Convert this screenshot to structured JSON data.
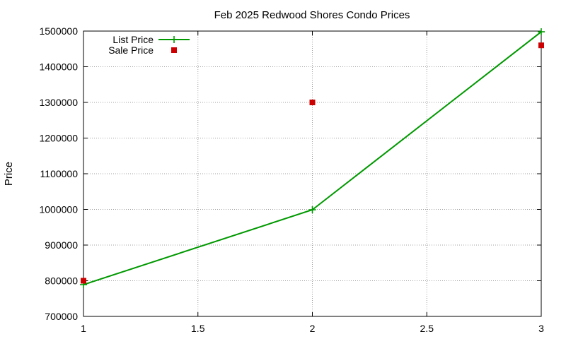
{
  "chart_data": {
    "type": "line",
    "title": "Feb 2025 Redwood Shores Condo Prices",
    "xlabel": "",
    "ylabel": "Price",
    "xlim": [
      1,
      3
    ],
    "ylim": [
      700000,
      1500000
    ],
    "x_ticks": [
      1,
      1.5,
      2,
      2.5,
      3
    ],
    "x_tick_labels": [
      "1",
      "1.5",
      "2",
      "2.5",
      "3"
    ],
    "y_ticks": [
      700000,
      800000,
      900000,
      1000000,
      1100000,
      1200000,
      1300000,
      1400000,
      1500000
    ],
    "y_tick_labels": [
      "700000",
      "800000",
      "900000",
      "1000000",
      "1100000",
      "1200000",
      "1300000",
      "1400000",
      "1500000"
    ],
    "grid": true,
    "legend_position": "top-left",
    "series": [
      {
        "name": "List Price",
        "style": "linespoints",
        "marker": "plus",
        "color": "#009900",
        "x": [
          1,
          2,
          3
        ],
        "y": [
          789000,
          999000,
          1498000
        ]
      },
      {
        "name": "Sale Price",
        "style": "points",
        "marker": "square",
        "color": "#cc0000",
        "x": [
          1,
          2,
          3
        ],
        "y": [
          800000,
          1300000,
          1460000
        ]
      }
    ]
  }
}
